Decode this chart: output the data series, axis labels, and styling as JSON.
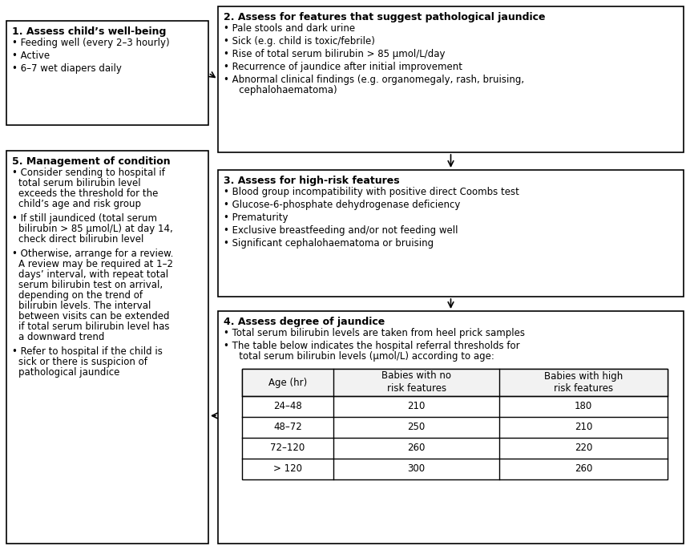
{
  "background_color": "#ffffff",
  "box1": {
    "title": "1. Assess child’s well-being",
    "bullets": [
      "Feeding well (every 2–3 hourly)",
      "Active",
      "6–7 wet diapers daily"
    ]
  },
  "box2": {
    "title": "2. Assess for features that suggest pathological jaundice",
    "bullets": [
      "Pale stools and dark urine",
      "Sick (e.g. child is toxic/febrile)",
      "Rise of total serum bilirubin > 85 μmol/L/day",
      "Recurrence of jaundice after initial improvement",
      "Abnormal clinical findings (e.g. organomegaly, rash, bruising,\n   cephalohaematoma)"
    ]
  },
  "box3": {
    "title": "3. Assess for high-risk features",
    "bullets": [
      "Blood group incompatibility with positive direct Coombs test",
      "Glucose-6-phosphate dehydrogenase deficiency",
      "Prematurity",
      "Exclusive breastfeeding and/or not feeding well",
      "Significant cephalohaematoma or bruising"
    ]
  },
  "box4": {
    "title": "4. Assess degree of jaundice",
    "bullets": [
      "Total serum bilirubin levels are taken from heel prick samples",
      "The table below indicates the hospital referral thresholds for\n   total serum bilirubin levels (μmol/L) according to age:"
    ],
    "table_headers": [
      "Age (hr)",
      "Babies with no\nrisk features",
      "Babies with high\nrisk features"
    ],
    "table_rows": [
      [
        "24–48",
        "210",
        "180"
      ],
      [
        "48–72",
        "250",
        "210"
      ],
      [
        "72–120",
        "260",
        "220"
      ],
      [
        "> 120",
        "300",
        "260"
      ]
    ]
  },
  "box5": {
    "title": "5. Management of condition",
    "bullets": [
      "Consider sending to hospital if\ntotal serum bilirubin level\nexceeds the threshold for the\nchild’s age and risk group",
      "If still jaundiced (total serum\nbilirubin > 85 μmol/L) at day 14,\ncheck direct bilirubin level",
      "Otherwise, arrange for a review.\nA review may be required at 1–2\ndays’ interval, with repeat total\nserum bilirubin test on arrival,\ndepending on the trend of\nbilirubin levels. The interval\nbetween visits can be extended\nif total serum bilirubin level has\na downward trend",
      "Refer to hospital if the child is\nsick or there is suspicion of\npathological jaundice"
    ]
  },
  "fontsize": 8.5,
  "title_fontsize": 9.0,
  "lw": 1.2
}
